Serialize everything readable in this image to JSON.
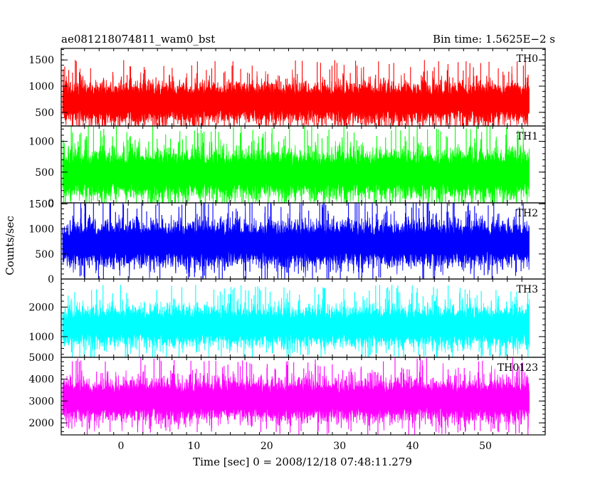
{
  "chart_data": {
    "type": "line",
    "title_left": "ae081218074811_wam0_bst",
    "title_right": "Bin time: 1.5625E−2 s",
    "xlabel": "Time [sec] 0 = 2008/12/18 07:48:11.279",
    "ylabel": "Counts/sec",
    "xlim": [
      -8.2,
      58.2
    ],
    "data_x_range": [
      -8,
      56
    ],
    "bin_time_s": 0.015625,
    "x_ticks": [
      0,
      10,
      20,
      30,
      40,
      50
    ],
    "panels": [
      {
        "name": "TH0",
        "color": "#ff0000",
        "ylim": [
          240,
          1720
        ],
        "y_ticks": [
          500,
          1000,
          1500
        ],
        "baseline": 690,
        "spread": 150,
        "low": 240,
        "high": 1720
      },
      {
        "name": "TH1",
        "color": "#00ff00",
        "ylim": [
          0,
          1250
        ],
        "y_ticks": [
          0,
          500,
          1000
        ],
        "baseline": 470,
        "spread": 150,
        "low": 0,
        "high": 1250
      },
      {
        "name": "TH2",
        "color": "#0000ff",
        "ylim": [
          0,
          1520
        ],
        "y_ticks": [
          0,
          500,
          1000,
          1500
        ],
        "baseline": 700,
        "spread": 170,
        "low": 0,
        "high": 1520
      },
      {
        "name": "TH3",
        "color": "#00ffff",
        "ylim": [
          300,
          2950
        ],
        "y_ticks": [
          1000,
          2000
        ],
        "baseline": 1350,
        "spread": 260,
        "low": 300,
        "high": 2950
      },
      {
        "name": "TH0123",
        "color": "#ff00ff",
        "ylim": [
          1450,
          5000
        ],
        "y_ticks": [
          2000,
          3000,
          4000,
          5000
        ],
        "baseline": 3050,
        "spread": 360,
        "low": 1450,
        "high": 5000
      }
    ]
  }
}
